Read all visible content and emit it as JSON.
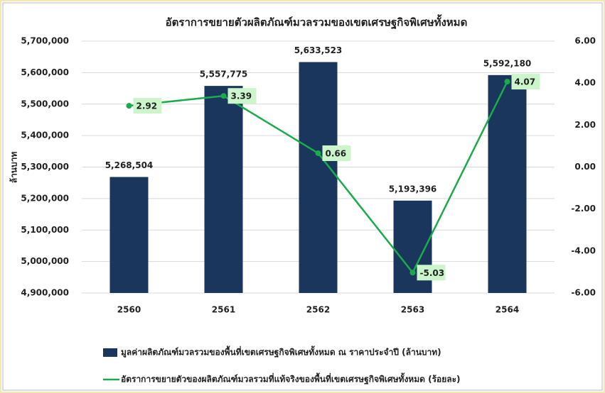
{
  "chart_data": {
    "type": "bar_line",
    "title": "อัตราการขยายตัวผลิตภัณฑ์มวลรวมของเขตเศรษฐกิจพิเศษทั้งหมด",
    "y_label": "ล้านบาท",
    "categories": [
      "2560",
      "2561",
      "2562",
      "2563",
      "2564"
    ],
    "series": [
      {
        "name": "มูลค่าผลิตภัณฑ์มวลรวมของพื้นที่เขตเศรษฐกิจพิเศษทั้งหมด ณ ราคาประจำปี (ล้านบาท)",
        "type": "bar",
        "color": "#1b365d",
        "values": [
          5268504,
          5557775,
          5633523,
          5193396,
          5592180
        ],
        "value_labels": [
          "5,268,504",
          "5,557,775",
          "5,633,523",
          "5,193,396",
          "5,592,180"
        ]
      },
      {
        "name": "อัตราการขยายตัวของผลิตภัณฑ์มวลรวมที่แท้จริงของพื้นที่เขตเศรษฐกิจพิเศษทั้งหมด (ร้อยละ)",
        "type": "line",
        "axis": "y2",
        "color": "#1aab4b",
        "values": [
          2.92,
          3.39,
          0.66,
          -5.03,
          4.07
        ]
      }
    ],
    "ylim": [
      4900000,
      5700000
    ],
    "yticks": [
      {
        "value": 4900000,
        "label": "4,900,000"
      },
      {
        "value": 5000000,
        "label": "5,000,000"
      },
      {
        "value": 5100000,
        "label": "5,100,000"
      },
      {
        "value": 5200000,
        "label": "5,200,000"
      },
      {
        "value": 5300000,
        "label": "5,300,000"
      },
      {
        "value": 5400000,
        "label": "5,400,000"
      },
      {
        "value": 5500000,
        "label": "5,500,000"
      },
      {
        "value": 5600000,
        "label": "5,600,000"
      },
      {
        "value": 5700000,
        "label": "5,700,000"
      }
    ],
    "y2lim": [
      -6,
      6
    ],
    "y2ticks": [
      {
        "value": -6,
        "label": "-6.00"
      },
      {
        "value": -4,
        "label": "-4.00"
      },
      {
        "value": -2,
        "label": "-2.00"
      },
      {
        "value": 0,
        "label": "0.00"
      },
      {
        "value": 2,
        "label": "2.00"
      },
      {
        "value": 4,
        "label": "4.00"
      },
      {
        "value": 6,
        "label": "6.00"
      }
    ],
    "grid": true
  }
}
